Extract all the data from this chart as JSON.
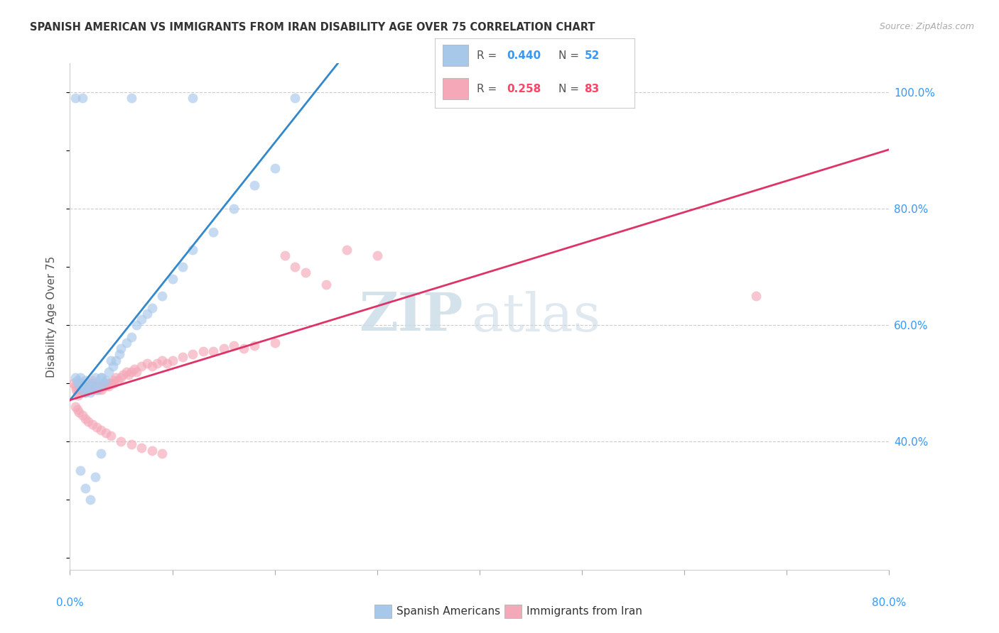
{
  "title": "SPANISH AMERICAN VS IMMIGRANTS FROM IRAN DISABILITY AGE OVER 75 CORRELATION CHART",
  "source": "Source: ZipAtlas.com",
  "ylabel": "Disability Age Over 75",
  "legend_R1": "0.440",
  "legend_N1": "52",
  "legend_R2": "0.258",
  "legend_N2": "83",
  "legend_label1": "Spanish Americans",
  "legend_label2": "Immigrants from Iran",
  "blue_fill": "#a8c8ea",
  "pink_fill": "#f4a8b8",
  "blue_line": "#3388cc",
  "pink_line": "#dd3366",
  "blue_text": "#3399ff",
  "pink_text": "#ff4466",
  "xmin": 0.0,
  "xmax": 0.8,
  "ymin": 0.18,
  "ymax": 1.05,
  "yticks": [
    0.4,
    0.6,
    0.8,
    1.0
  ],
  "ytick_labels": [
    "40.0%",
    "60.0%",
    "80.0%",
    "100.0%"
  ],
  "xtick_positions": [
    0.0,
    0.1,
    0.2,
    0.3,
    0.4,
    0.5,
    0.6,
    0.7,
    0.8
  ],
  "blue_x": [
    0.005,
    0.007,
    0.008,
    0.01,
    0.01,
    0.012,
    0.013,
    0.015,
    0.015,
    0.017,
    0.018,
    0.02,
    0.021,
    0.022,
    0.023,
    0.025,
    0.026,
    0.028,
    0.03,
    0.031,
    0.032,
    0.035,
    0.038,
    0.04,
    0.042,
    0.045,
    0.048,
    0.05,
    0.055,
    0.06,
    0.065,
    0.07,
    0.075,
    0.08,
    0.09,
    0.1,
    0.11,
    0.12,
    0.14,
    0.16,
    0.18,
    0.2,
    0.01,
    0.015,
    0.02,
    0.025,
    0.03,
    0.012,
    0.06,
    0.12,
    0.22,
    0.005
  ],
  "blue_y": [
    0.51,
    0.505,
    0.5,
    0.495,
    0.51,
    0.49,
    0.495,
    0.485,
    0.505,
    0.49,
    0.5,
    0.485,
    0.495,
    0.49,
    0.5,
    0.51,
    0.49,
    0.495,
    0.51,
    0.51,
    0.5,
    0.505,
    0.52,
    0.54,
    0.53,
    0.54,
    0.55,
    0.56,
    0.57,
    0.58,
    0.6,
    0.61,
    0.62,
    0.63,
    0.65,
    0.68,
    0.7,
    0.73,
    0.76,
    0.8,
    0.84,
    0.87,
    0.35,
    0.32,
    0.3,
    0.34,
    0.38,
    0.99,
    0.99,
    0.99,
    0.99,
    0.99
  ],
  "pink_x": [
    0.003,
    0.005,
    0.006,
    0.007,
    0.008,
    0.009,
    0.01,
    0.011,
    0.012,
    0.013,
    0.014,
    0.015,
    0.016,
    0.017,
    0.018,
    0.019,
    0.02,
    0.021,
    0.022,
    0.023,
    0.024,
    0.025,
    0.026,
    0.027,
    0.028,
    0.03,
    0.031,
    0.032,
    0.033,
    0.035,
    0.037,
    0.038,
    0.04,
    0.042,
    0.043,
    0.045,
    0.047,
    0.05,
    0.052,
    0.055,
    0.057,
    0.06,
    0.063,
    0.065,
    0.07,
    0.075,
    0.08,
    0.085,
    0.09,
    0.095,
    0.1,
    0.11,
    0.12,
    0.13,
    0.14,
    0.15,
    0.16,
    0.17,
    0.18,
    0.2,
    0.21,
    0.22,
    0.23,
    0.25,
    0.27,
    0.3,
    0.005,
    0.007,
    0.009,
    0.012,
    0.015,
    0.018,
    0.022,
    0.026,
    0.03,
    0.035,
    0.04,
    0.05,
    0.06,
    0.07,
    0.08,
    0.09,
    0.67
  ],
  "pink_y": [
    0.5,
    0.495,
    0.49,
    0.485,
    0.48,
    0.49,
    0.495,
    0.5,
    0.495,
    0.49,
    0.485,
    0.49,
    0.495,
    0.49,
    0.495,
    0.49,
    0.495,
    0.5,
    0.505,
    0.495,
    0.49,
    0.495,
    0.49,
    0.495,
    0.49,
    0.495,
    0.49,
    0.495,
    0.5,
    0.495,
    0.5,
    0.495,
    0.5,
    0.505,
    0.5,
    0.51,
    0.505,
    0.51,
    0.515,
    0.52,
    0.515,
    0.52,
    0.525,
    0.52,
    0.53,
    0.535,
    0.53,
    0.535,
    0.54,
    0.535,
    0.54,
    0.545,
    0.55,
    0.555,
    0.555,
    0.56,
    0.565,
    0.56,
    0.565,
    0.57,
    0.72,
    0.7,
    0.69,
    0.67,
    0.73,
    0.72,
    0.46,
    0.455,
    0.45,
    0.445,
    0.44,
    0.435,
    0.43,
    0.425,
    0.42,
    0.415,
    0.41,
    0.4,
    0.395,
    0.39,
    0.385,
    0.38,
    0.65
  ]
}
